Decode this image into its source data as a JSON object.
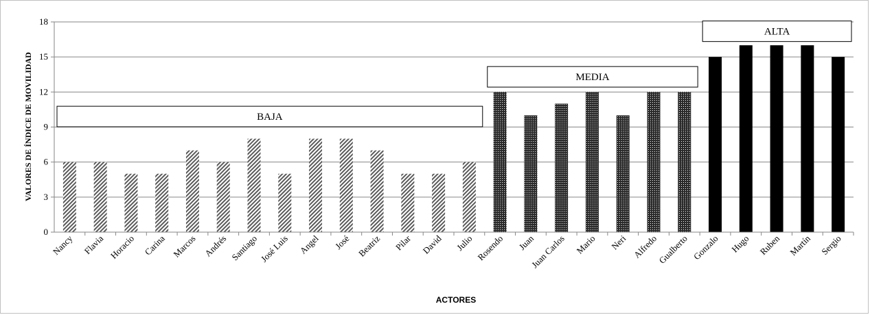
{
  "chart_data": {
    "type": "bar",
    "xlabel": "ACTORES",
    "ylabel": "VALORES DE ÍNDICE DE MOVILIDAD",
    "ylim": [
      0,
      18
    ],
    "yticks": [
      0,
      3,
      6,
      9,
      12,
      15,
      18
    ],
    "grid": true,
    "categories": [
      "Nancy",
      "Flavia",
      "Horacio",
      "Carina",
      "Marcos",
      "Andrés",
      "Santiago",
      "José Luis",
      "Angel",
      "José",
      "Beatriz",
      "Pilar",
      "David",
      "Julio",
      "Rosendo",
      "Juan",
      "Juan Carlos",
      "Mario",
      "Neri",
      "Alfredo",
      "Gualberto",
      "Gonzalo",
      "Hugo",
      "Ruben",
      "Martín",
      "Sergio"
    ],
    "values": [
      6,
      6,
      5,
      5,
      7,
      6,
      8,
      5,
      8,
      8,
      7,
      5,
      5,
      6,
      12,
      10,
      11,
      12,
      10,
      12,
      12,
      15,
      16,
      16,
      16,
      15
    ],
    "groups": [
      {
        "label": "BAJA",
        "start": 0,
        "end": 13,
        "pattern": "diagonal-hatch",
        "box_value": 9.9
      },
      {
        "label": "MEDIA",
        "start": 14,
        "end": 20,
        "pattern": "dotted",
        "box_value": 13.3
      },
      {
        "label": "ALTA",
        "start": 21,
        "end": 25,
        "pattern": "solid-black",
        "box_value": 17.2
      }
    ]
  }
}
